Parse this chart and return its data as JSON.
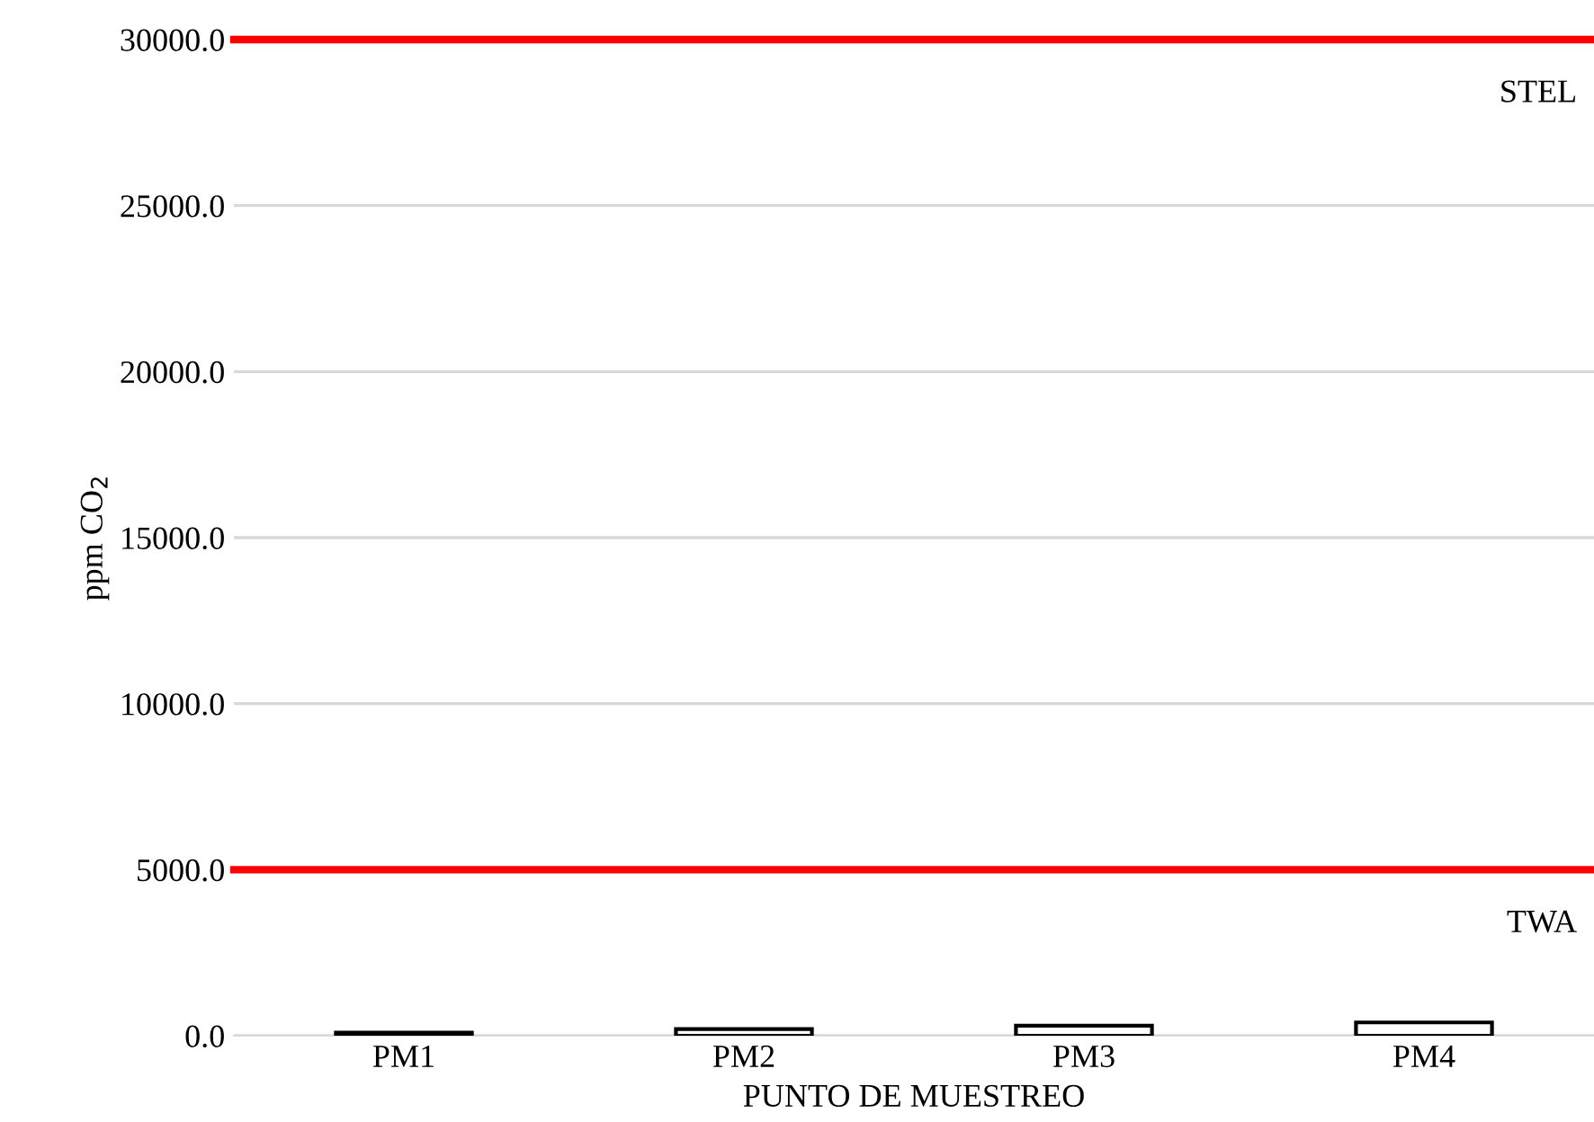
{
  "chart_data": {
    "type": "bar",
    "xlabel": "PUNTO DE MUESTREO",
    "ylabel": "ppm CO$_{2}$",
    "categories": [
      "PM1",
      "PM2",
      "PM3",
      "PM4"
    ],
    "values": [
      90,
      200,
      300,
      400
    ],
    "color": "#ffffff",
    "ylim": [
      0,
      30000
    ],
    "yticks": [
      {
        "value": 0,
        "label": "0.0"
      },
      {
        "value": 5000,
        "label": "5000.0"
      },
      {
        "value": 10000,
        "label": "10000.0"
      },
      {
        "value": 15000,
        "label": "15000.0"
      },
      {
        "value": 20000,
        "label": "20000.0"
      },
      {
        "value": 25000,
        "label": "25000.0"
      },
      {
        "value": 30000,
        "label": "30000.0"
      }
    ],
    "grid": "y",
    "ref_lines": [
      {
        "axis": "y",
        "value": 5000,
        "label": "TWA",
        "color": "#ff0000"
      },
      {
        "axis": "y",
        "value": 30000,
        "label": "STEL",
        "color": "#ff0000"
      }
    ]
  }
}
